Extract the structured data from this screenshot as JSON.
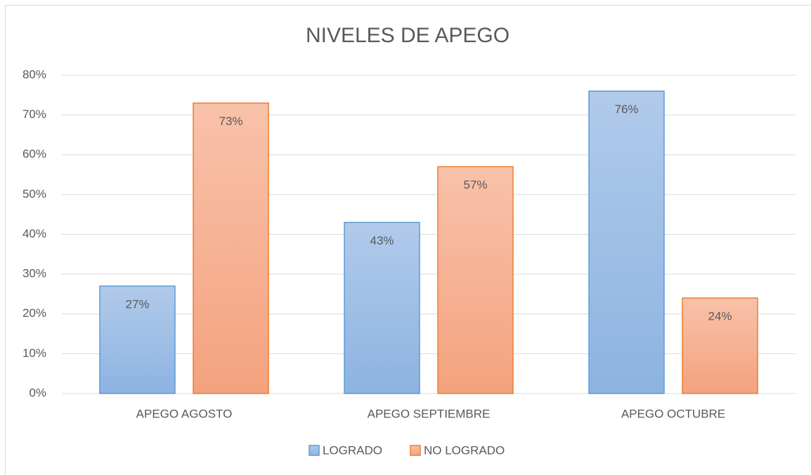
{
  "chart_data": {
    "type": "bar",
    "title": "NIVELES DE APEGO",
    "categories": [
      "APEGO AGOSTO",
      "APEGO SEPTIEMBRE",
      "APEGO OCTUBRE"
    ],
    "series": [
      {
        "name": "LOGRADO",
        "color": "#5b9bd5",
        "values": [
          27,
          43,
          76
        ],
        "value_labels": [
          "27%",
          "43%",
          "76%"
        ]
      },
      {
        "name": "NO LOGRADO",
        "color": "#ed7d31",
        "values": [
          73,
          57,
          24
        ],
        "value_labels": [
          "73%",
          "57%",
          "24%"
        ]
      }
    ],
    "ylim": [
      0,
      80
    ],
    "yticks": [
      {
        "value": 0,
        "label": "0%"
      },
      {
        "value": 10,
        "label": "10%"
      },
      {
        "value": 20,
        "label": "20%"
      },
      {
        "value": 30,
        "label": "30%"
      },
      {
        "value": 40,
        "label": "40%"
      },
      {
        "value": 50,
        "label": "50%"
      },
      {
        "value": 60,
        "label": "60%"
      },
      {
        "value": 70,
        "label": "70%"
      },
      {
        "value": 80,
        "label": "80%"
      }
    ],
    "grid": true,
    "legend": "bottom"
  }
}
